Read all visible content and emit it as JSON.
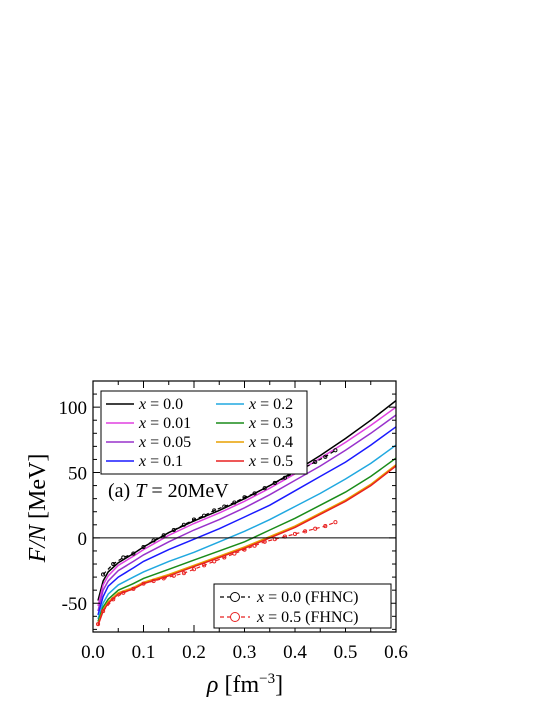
{
  "chart_data": {
    "type": "line",
    "title": "",
    "annotation": {
      "prefix": "(a) ",
      "var": "T",
      "rest": " = 20MeV"
    },
    "xlabel": {
      "symbol": "ρ",
      "unit": " [fm",
      "exp": "−3",
      "close": "]"
    },
    "ylabel": {
      "symbol": "F/N",
      "unit": " [MeV]"
    },
    "xlim": [
      0.0,
      0.6
    ],
    "ylim": [
      -72,
      120
    ],
    "xticks": [
      0.0,
      0.1,
      0.2,
      0.3,
      0.4,
      0.5,
      0.6
    ],
    "xtick_labels": [
      "0.0",
      "0.1",
      "0.2",
      "0.3",
      "0.4",
      "0.5",
      "0.6"
    ],
    "yticks": [
      -50,
      0,
      50,
      100
    ],
    "ytick_labels": [
      "-50",
      "0",
      "50",
      "100"
    ],
    "zero_line": true,
    "grid": false,
    "legend_main_position": "top-left",
    "legend_fhnc_position": "bottom-right",
    "series": [
      {
        "label_var": "x",
        "label_value": " = 0.0",
        "color": "#000000",
        "x": [
          0.01,
          0.02,
          0.03,
          0.05,
          0.08,
          0.1,
          0.15,
          0.2,
          0.25,
          0.3,
          0.35,
          0.4,
          0.45,
          0.5,
          0.55,
          0.6
        ],
        "y": [
          -48,
          -33,
          -26,
          -19,
          -12,
          -7,
          4,
          13,
          21,
          30,
          40,
          51,
          63,
          76,
          90,
          105
        ]
      },
      {
        "label_var": "x",
        "label_value": " = 0.01",
        "color": "#e040e0",
        "x": [
          0.01,
          0.02,
          0.03,
          0.05,
          0.08,
          0.1,
          0.15,
          0.2,
          0.25,
          0.3,
          0.35,
          0.4,
          0.45,
          0.5,
          0.55,
          0.6
        ],
        "y": [
          -52,
          -36,
          -29,
          -21,
          -14,
          -9,
          2,
          11,
          19,
          28,
          38,
          49,
          61,
          73,
          86,
          100
        ]
      },
      {
        "label_var": "x",
        "label_value": " = 0.05",
        "color": "#9932cc",
        "x": [
          0.01,
          0.02,
          0.03,
          0.05,
          0.08,
          0.1,
          0.15,
          0.2,
          0.25,
          0.3,
          0.35,
          0.4,
          0.45,
          0.5,
          0.55,
          0.6
        ],
        "y": [
          -56,
          -40,
          -33,
          -25,
          -18,
          -13,
          -3,
          6,
          14,
          23,
          33,
          44,
          55,
          67,
          80,
          94
        ]
      },
      {
        "label_var": "x",
        "label_value": " = 0.1",
        "color": "#1a1aff",
        "x": [
          0.01,
          0.02,
          0.03,
          0.05,
          0.08,
          0.1,
          0.15,
          0.2,
          0.25,
          0.3,
          0.35,
          0.4,
          0.45,
          0.5,
          0.55,
          0.6
        ],
        "y": [
          -59,
          -45,
          -37,
          -30,
          -23,
          -18,
          -9,
          -1,
          7,
          16,
          25,
          36,
          47,
          58,
          71,
          85
        ]
      },
      {
        "label_var": "x",
        "label_value": " = 0.2",
        "color": "#20a8e0",
        "x": [
          0.01,
          0.02,
          0.03,
          0.05,
          0.08,
          0.1,
          0.15,
          0.2,
          0.25,
          0.3,
          0.35,
          0.4,
          0.45,
          0.5,
          0.55,
          0.6
        ],
        "y": [
          -62,
          -50,
          -43,
          -36,
          -30,
          -26,
          -18,
          -11,
          -3,
          5,
          14,
          24,
          34,
          45,
          57,
          71
        ]
      },
      {
        "label_var": "x",
        "label_value": " = 0.3",
        "color": "#1a8c1a",
        "x": [
          0.01,
          0.02,
          0.03,
          0.05,
          0.08,
          0.1,
          0.15,
          0.2,
          0.25,
          0.3,
          0.35,
          0.4,
          0.45,
          0.5,
          0.55,
          0.6
        ],
        "y": [
          -64,
          -53,
          -47,
          -40,
          -35,
          -31,
          -24,
          -17,
          -10,
          -3,
          6,
          15,
          25,
          35,
          47,
          61
        ]
      },
      {
        "label_var": "x",
        "label_value": " = 0.4",
        "color": "#e8a000",
        "x": [
          0.01,
          0.02,
          0.03,
          0.05,
          0.08,
          0.1,
          0.15,
          0.2,
          0.25,
          0.3,
          0.35,
          0.4,
          0.45,
          0.5,
          0.55,
          0.6
        ],
        "y": [
          -66,
          -55,
          -49,
          -42,
          -38,
          -34,
          -28,
          -21,
          -14,
          -7,
          1,
          9,
          19,
          29,
          41,
          56
        ]
      },
      {
        "label_var": "x",
        "label_value": " = 0.5",
        "color": "#e82020",
        "x": [
          0.01,
          0.02,
          0.03,
          0.05,
          0.08,
          0.1,
          0.15,
          0.2,
          0.25,
          0.3,
          0.35,
          0.4,
          0.45,
          0.5,
          0.55,
          0.6
        ],
        "y": [
          -67,
          -56,
          -50,
          -43,
          -39,
          -35,
          -29,
          -22,
          -15,
          -8,
          0,
          8,
          18,
          28,
          40,
          55
        ]
      }
    ],
    "fhnc_series": [
      {
        "label_var": "x",
        "label_value": " = 0.0 (FHNC)",
        "color": "#000000",
        "x": [
          0.02,
          0.04,
          0.06,
          0.08,
          0.1,
          0.12,
          0.14,
          0.16,
          0.18,
          0.2,
          0.22,
          0.24,
          0.26,
          0.28,
          0.3,
          0.32,
          0.34,
          0.36,
          0.38,
          0.4,
          0.42,
          0.44,
          0.46,
          0.48
        ],
        "y": [
          -28,
          -20,
          -15,
          -12,
          -7,
          -2,
          2,
          6,
          10,
          14,
          17,
          21,
          24,
          27,
          31,
          34,
          38,
          42,
          46,
          50,
          54,
          58,
          62,
          67
        ]
      },
      {
        "label_var": "x",
        "label_value": " = 0.5 (FHNC)",
        "color": "#e82020",
        "x": [
          0.01,
          0.02,
          0.04,
          0.06,
          0.08,
          0.1,
          0.12,
          0.14,
          0.16,
          0.18,
          0.2,
          0.22,
          0.24,
          0.26,
          0.28,
          0.3,
          0.32,
          0.34,
          0.36,
          0.38,
          0.4,
          0.42,
          0.44,
          0.46,
          0.48
        ],
        "y": [
          -66,
          -56,
          -47,
          -42,
          -39,
          -35,
          -33,
          -31,
          -29,
          -27,
          -24,
          -21,
          -18,
          -15,
          -12,
          -9,
          -6,
          -3,
          -1,
          1,
          3,
          5,
          7,
          9,
          12
        ]
      }
    ]
  }
}
